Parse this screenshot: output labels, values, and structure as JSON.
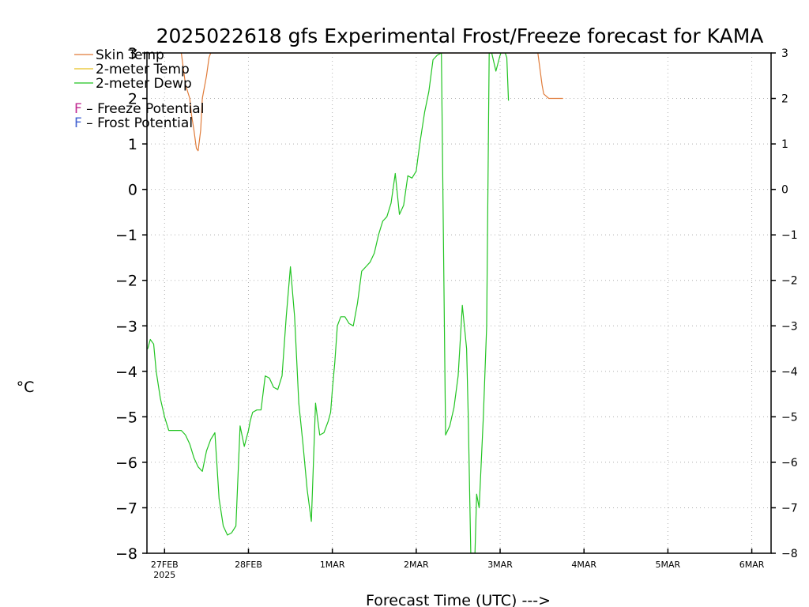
{
  "chart_data": {
    "type": "line",
    "title": "2025022618 gfs Experimental Frost/Freeze forecast for KAMA",
    "xlabel": "Forecast Time (UTC) --->",
    "ylabel": "°C",
    "ylim": [
      -8,
      3
    ],
    "xlim_days": [
      -0.21,
      7.23
    ],
    "yticks": [
      3,
      2,
      1,
      0,
      -1,
      -2,
      -3,
      -4,
      -5,
      -6,
      -7,
      -8
    ],
    "xticks": [
      {
        "day": 0,
        "label": "27FEB",
        "sub": "2025"
      },
      {
        "day": 1,
        "label": "28FEB",
        "sub": ""
      },
      {
        "day": 2,
        "label": "1MAR",
        "sub": ""
      },
      {
        "day": 3,
        "label": "2MAR",
        "sub": ""
      },
      {
        "day": 4,
        "label": "3MAR",
        "sub": ""
      },
      {
        "day": 5,
        "label": "4MAR",
        "sub": ""
      },
      {
        "day": 6,
        "label": "5MAR",
        "sub": ""
      },
      {
        "day": 7,
        "label": "6MAR",
        "sub": ""
      }
    ],
    "grid": true,
    "legend_position": "top-left",
    "legend": [
      {
        "label": "Skin Temp",
        "color": "#e07b39"
      },
      {
        "label": "2-meter Temp",
        "color": "#e8c020"
      },
      {
        "label": "2-meter Dewp",
        "color": "#22c422"
      }
    ],
    "potential_legend": [
      {
        "letter": "F",
        "text": " – Freeze Potential",
        "color": "#c02890"
      },
      {
        "letter": "F",
        "text": " – Frost Potential",
        "color": "#4060d0"
      }
    ],
    "series": [
      {
        "name": "2-meter Dewp",
        "color": "#22c422",
        "x": [
          -0.25,
          -0.2,
          -0.17,
          -0.13,
          -0.1,
          -0.05,
          0,
          0.05,
          0.1,
          0.15,
          0.2,
          0.25,
          0.3,
          0.35,
          0.4,
          0.45,
          0.5,
          0.55,
          0.6,
          0.65,
          0.7,
          0.75,
          0.8,
          0.85,
          0.9,
          0.95,
          1.0,
          1.02,
          1.05,
          1.1,
          1.15,
          1.2,
          1.25,
          1.3,
          1.35,
          1.4,
          1.45,
          1.5,
          1.55,
          1.6,
          1.65,
          1.7,
          1.75,
          1.8,
          1.85,
          1.9,
          1.95,
          1.98,
          2.0,
          2.03,
          2.06,
          2.1,
          2.15,
          2.2,
          2.25,
          2.3,
          2.35,
          2.4,
          2.45,
          2.5,
          2.55,
          2.6,
          2.65,
          2.7,
          2.75,
          2.8,
          2.85,
          2.9,
          2.95,
          3.0,
          3.02,
          3.05,
          3.1,
          3.15,
          3.2,
          3.25,
          3.3,
          3.35,
          3.4,
          3.45,
          3.5,
          3.55,
          3.6,
          3.62,
          3.65,
          3.7,
          3.72,
          3.75,
          3.8,
          3.84,
          3.87,
          3.9,
          3.95,
          4.0,
          4.03,
          4.06,
          4.08,
          4.1
        ],
        "y": [
          -3.5,
          -3.5,
          -3.3,
          -3.4,
          -4.0,
          -4.6,
          -5.0,
          -5.3,
          -5.3,
          -5.3,
          -5.3,
          -5.4,
          -5.6,
          -5.9,
          -6.1,
          -6.2,
          -5.75,
          -5.5,
          -5.35,
          -6.8,
          -7.4,
          -7.6,
          -7.55,
          -7.4,
          -5.2,
          -5.65,
          -5.3,
          -5.1,
          -4.9,
          -4.85,
          -4.85,
          -4.1,
          -4.15,
          -4.35,
          -4.4,
          -4.1,
          -2.8,
          -1.7,
          -2.8,
          -4.7,
          -5.6,
          -6.6,
          -7.3,
          -4.7,
          -5.4,
          -5.35,
          -5.1,
          -4.9,
          -4.4,
          -3.8,
          -3.0,
          -2.8,
          -2.8,
          -2.95,
          -3.0,
          -2.5,
          -1.8,
          -1.7,
          -1.6,
          -1.4,
          -1.0,
          -0.7,
          -0.6,
          -0.3,
          0.35,
          -0.55,
          -0.35,
          0.3,
          0.25,
          0.4,
          0.7,
          1.1,
          1.7,
          2.15,
          2.85,
          2.95,
          3.0,
          -5.4,
          -5.2,
          -4.8,
          -4.1,
          -2.55,
          -3.5,
          -5.0,
          -8.0,
          -8.0,
          -6.7,
          -7.0,
          -5.0,
          -3.0,
          3.0,
          3.0,
          2.6,
          2.95,
          3.1,
          3.0,
          2.9,
          1.95
        ]
      },
      {
        "name": "Skin Temp",
        "color": "#e07b39",
        "x": [
          0.2,
          0.25,
          0.3,
          0.32,
          0.35,
          0.38,
          0.4,
          0.43,
          0.45,
          0.5,
          0.53,
          0.55,
          0.57,
          0.6,
          0.65,
          0.7,
          0.73,
          0.75,
          0.78,
          0.8,
          0.85,
          0.9,
          0.95,
          1.0,
          4.45,
          4.5,
          4.52,
          4.55,
          4.58,
          4.6,
          4.7,
          4.75
        ],
        "y": [
          3.0,
          2.3,
          2.0,
          1.65,
          1.3,
          0.9,
          0.85,
          1.3,
          2.0,
          2.5,
          2.9,
          3.0,
          3.0,
          3.0,
          3.0,
          3.0,
          3.0,
          3.0,
          3.0,
          3.0,
          3.0,
          3.0,
          3.0,
          3.0,
          3.0,
          2.3,
          2.1,
          2.05,
          2.0,
          2.0,
          2.0,
          2.0
        ]
      }
    ]
  }
}
